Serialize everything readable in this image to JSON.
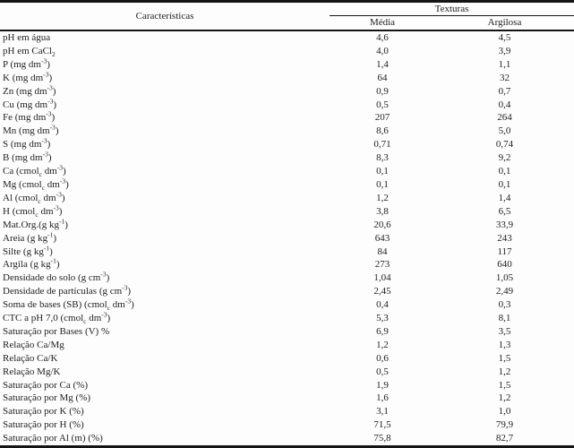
{
  "table": {
    "header": {
      "characteristics": "Características",
      "group": "Texturas",
      "columns": [
        "Média",
        "Argilosa"
      ]
    },
    "rows": [
      {
        "label": "pH em água",
        "media": "4,6",
        "argilosa": "4,5"
      },
      {
        "label": "pH em CaCl<sub>2</sub>",
        "media": "4,0",
        "argilosa": "3,9"
      },
      {
        "label": "P (mg dm<sup>-3</sup>)",
        "media": "1,4",
        "argilosa": "1,1"
      },
      {
        "label": "K (mg dm<sup>-3</sup>)",
        "media": "64",
        "argilosa": "32"
      },
      {
        "label": "Zn (mg dm<sup>-3</sup>)",
        "media": "0,9",
        "argilosa": "0,7"
      },
      {
        "label": "Cu (mg dm<sup>-3</sup>)",
        "media": "0,5",
        "argilosa": "0,4"
      },
      {
        "label": "Fe (mg dm<sup>-3</sup>)",
        "media": "207",
        "argilosa": "264"
      },
      {
        "label": "Mn (mg dm<sup>-3</sup>)",
        "media": "8,6",
        "argilosa": "5,0"
      },
      {
        "label": "S (mg dm<sup>-3</sup>)",
        "media": "0,71",
        "argilosa": "0,74"
      },
      {
        "label": "B (mg dm<sup>-3</sup>)",
        "media": "8,3",
        "argilosa": "9,2"
      },
      {
        "label": "Ca (cmol<sub>c</sub> dm<sup>-3</sup>)",
        "media": "0,1",
        "argilosa": "0,1"
      },
      {
        "label": "Mg (cmol<sub>c</sub> dm<sup>-3</sup>)",
        "media": "0,1",
        "argilosa": "0,1"
      },
      {
        "label": "Al (cmol<sub>c</sub> dm<sup>-3</sup>)",
        "media": "1,2",
        "argilosa": "1,4"
      },
      {
        "label": "H (cmol<sub>c</sub> dm<sup>-3</sup>)",
        "media": "3,8",
        "argilosa": "6,5"
      },
      {
        "label": "Mat.Org.(g kg<sup>-1</sup>)",
        "media": "20,6",
        "argilosa": "33,9"
      },
      {
        "label": "Areia (g kg<sup>-1</sup>)",
        "media": "643",
        "argilosa": "243"
      },
      {
        "label": "Silte (g kg<sup>-1</sup>)",
        "media": "84",
        "argilosa": "117"
      },
      {
        "label": "Argila (g kg<sup>-1</sup>)",
        "media": "273",
        "argilosa": "640"
      },
      {
        "label": "Densidade do solo (g cm<sup>-3</sup>)",
        "media": "1,04",
        "argilosa": "1,05"
      },
      {
        "label": "Densidade de partículas (g cm<sup>-3</sup>)",
        "media": "2,45",
        "argilosa": "2,49"
      },
      {
        "label": "Soma de bases (SB) (cmol<sub>c</sub> dm<sup>-3</sup>)",
        "media": "0,4",
        "argilosa": "0,3"
      },
      {
        "label": "CTC a pH 7,0 (cmol<sub>c</sub> dm<sup>-3</sup>)",
        "media": "5,3",
        "argilosa": "8,1"
      },
      {
        "label": "Saturação por Bases (V) %",
        "media": "6,9",
        "argilosa": "3,5"
      },
      {
        "label": "Relação Ca/Mg",
        "media": "1,2",
        "argilosa": "1,3"
      },
      {
        "label": "Relação Ca/K",
        "media": "0,6",
        "argilosa": "1,5"
      },
      {
        "label": "Relação Mg/K",
        "media": "0,5",
        "argilosa": "1,2"
      },
      {
        "label": "Saturação por Ca (%)",
        "media": "1,9",
        "argilosa": "1,5"
      },
      {
        "label": "Saturação por Mg (%)",
        "media": "1,6",
        "argilosa": "1,2"
      },
      {
        "label": "Saturação por K (%)",
        "media": "3,1",
        "argilosa": "1,0"
      },
      {
        "label": "Saturação por H (%)",
        "media": "71,5",
        "argilosa": "79,9"
      },
      {
        "label": "Saturação por Al (m) (%)",
        "media": "75,8",
        "argilosa": "82,7"
      }
    ]
  },
  "colors": {
    "text": "#1e1e1e",
    "border": "#141414",
    "background": "#fdfdfd"
  }
}
